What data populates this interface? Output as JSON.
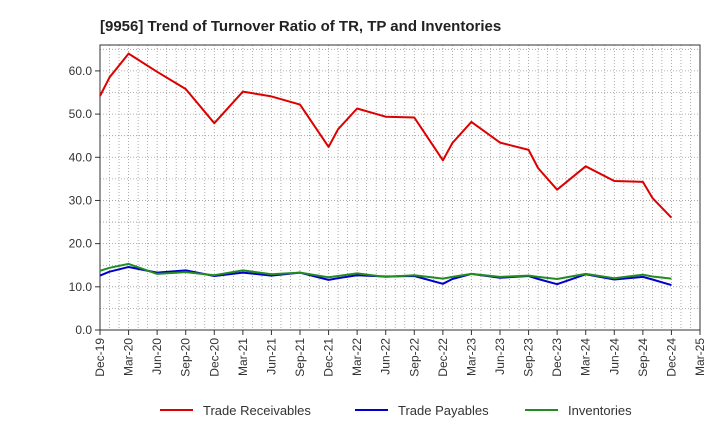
{
  "chart_data": {
    "type": "line",
    "title": "[9956]  Trend of Turnover Ratio of TR, TP and Inventories",
    "xlabel": "",
    "ylabel": "",
    "ylim": [
      0,
      66
    ],
    "yticks": [
      "0.0",
      "10.0",
      "20.0",
      "30.0",
      "40.0",
      "50.0",
      "60.0"
    ],
    "ytick_values": [
      0,
      10,
      20,
      30,
      40,
      50,
      60
    ],
    "xticks": [
      "Dec-19",
      "Mar-20",
      "Jun-20",
      "Sep-20",
      "Dec-20",
      "Mar-21",
      "Jun-21",
      "Sep-21",
      "Dec-21",
      "Mar-22",
      "Jun-22",
      "Sep-22",
      "Dec-22",
      "Mar-23",
      "Jun-23",
      "Sep-23",
      "Dec-23",
      "Mar-24",
      "Jun-24",
      "Sep-24",
      "Dec-24",
      "Mar-25"
    ],
    "x": [
      "Dec-19",
      "Jan-20",
      "Mar-20",
      "Jun-20",
      "Sep-20",
      "Dec-20",
      "Mar-21",
      "Jun-21",
      "Sep-21",
      "Dec-21",
      "Jan-22",
      "Mar-22",
      "Jun-22",
      "Sep-22",
      "Dec-22",
      "Jan-23",
      "Mar-23",
      "Jun-23",
      "Sep-23",
      "Oct-23",
      "Dec-23",
      "Mar-24",
      "Jun-24",
      "Sep-24",
      "Oct-24",
      "Dec-24"
    ],
    "grid": true,
    "legend_position": "bottom",
    "series": [
      {
        "name": "Trade Receivables",
        "color": "#dd0000",
        "values": [
          54.2,
          58.5,
          64.0,
          59.8,
          55.8,
          47.9,
          55.2,
          54.1,
          52.2,
          42.4,
          46.5,
          51.3,
          49.4,
          49.2,
          39.3,
          43.3,
          48.2,
          43.4,
          41.7,
          37.5,
          32.5,
          37.9,
          34.5,
          34.3,
          30.6,
          26.0
        ]
      },
      {
        "name": "Trade Payables",
        "color": "#0000cc",
        "values": [
          12.6,
          13.5,
          14.6,
          13.3,
          13.8,
          12.5,
          13.3,
          12.6,
          13.3,
          11.6,
          12.0,
          12.7,
          12.4,
          12.5,
          10.7,
          11.8,
          13.0,
          12.1,
          12.5,
          11.8,
          10.6,
          12.9,
          11.7,
          12.3,
          11.7,
          10.4
        ]
      },
      {
        "name": "Inventories",
        "color": "#228b22",
        "values": [
          13.7,
          14.4,
          15.3,
          13.0,
          13.4,
          12.7,
          13.8,
          12.9,
          13.3,
          12.2,
          12.5,
          13.1,
          12.3,
          12.7,
          11.9,
          12.3,
          13.0,
          12.3,
          12.6,
          12.3,
          11.8,
          13.0,
          12.0,
          12.8,
          12.4,
          11.9
        ]
      }
    ]
  }
}
